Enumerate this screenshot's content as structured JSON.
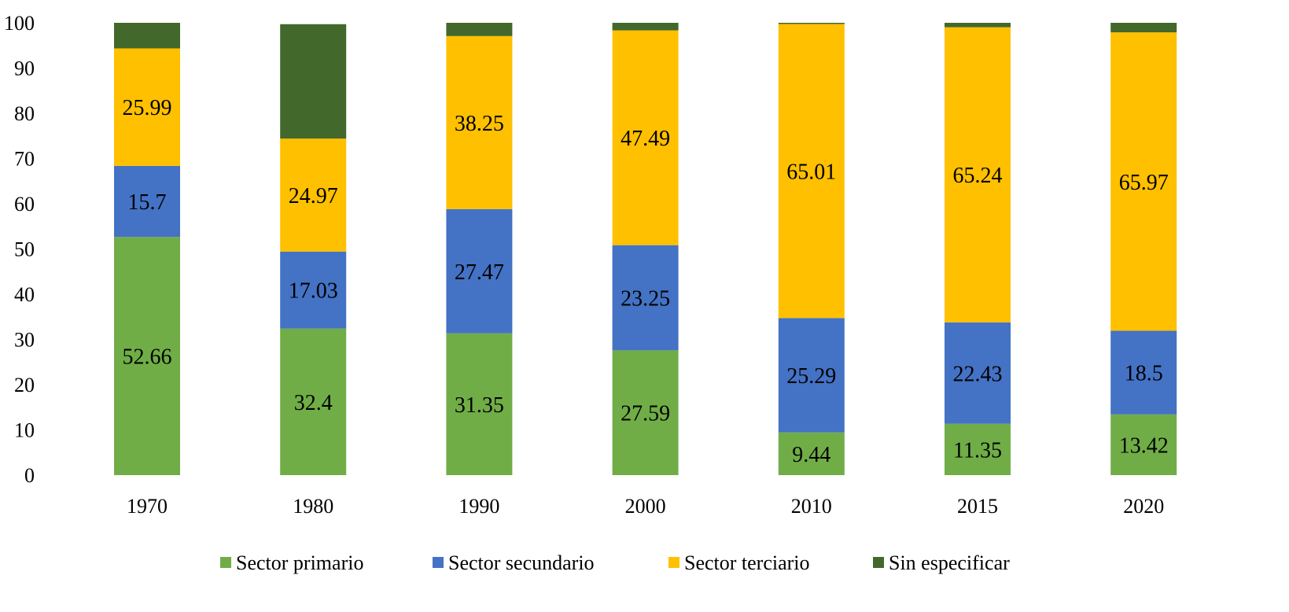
{
  "chart_data": {
    "type": "bar",
    "stacked": true,
    "title": "",
    "xlabel": "",
    "ylabel": "",
    "ylim": [
      0,
      100
    ],
    "yticks": [
      0,
      10,
      20,
      30,
      40,
      50,
      60,
      70,
      80,
      90,
      100
    ],
    "grid": false,
    "legend_position": "bottom",
    "categories": [
      "1970",
      "1980",
      "1990",
      "2000",
      "2010",
      "2015",
      "2020"
    ],
    "series": [
      {
        "name": "Sector primario",
        "color": "#70AD47",
        "values": [
          52.66,
          32.4,
          31.35,
          27.59,
          9.44,
          11.35,
          13.42
        ],
        "labels": [
          "52.66",
          "32.4",
          "31.35",
          "27.59",
          "9.44",
          "11.35",
          "13.42"
        ]
      },
      {
        "name": "Sector secundario",
        "color": "#4472C4",
        "values": [
          15.7,
          17.03,
          27.47,
          23.25,
          25.29,
          22.43,
          18.5
        ],
        "labels": [
          "15.7",
          "17.03",
          "27.47",
          "23.25",
          "25.29",
          "22.43",
          "18.5"
        ]
      },
      {
        "name": "Sector terciario",
        "color": "#FFC000",
        "values": [
          25.99,
          24.97,
          38.25,
          47.49,
          65.01,
          65.24,
          65.97
        ],
        "labels": [
          "25.99",
          "24.97",
          "38.25",
          "47.49",
          "65.01",
          "65.24",
          "65.97"
        ]
      },
      {
        "name": "Sin especificar",
        "color": "#43682B",
        "values": [
          5.65,
          25.3,
          2.93,
          1.67,
          0.26,
          0.98,
          2.11
        ],
        "labels": []
      }
    ]
  }
}
